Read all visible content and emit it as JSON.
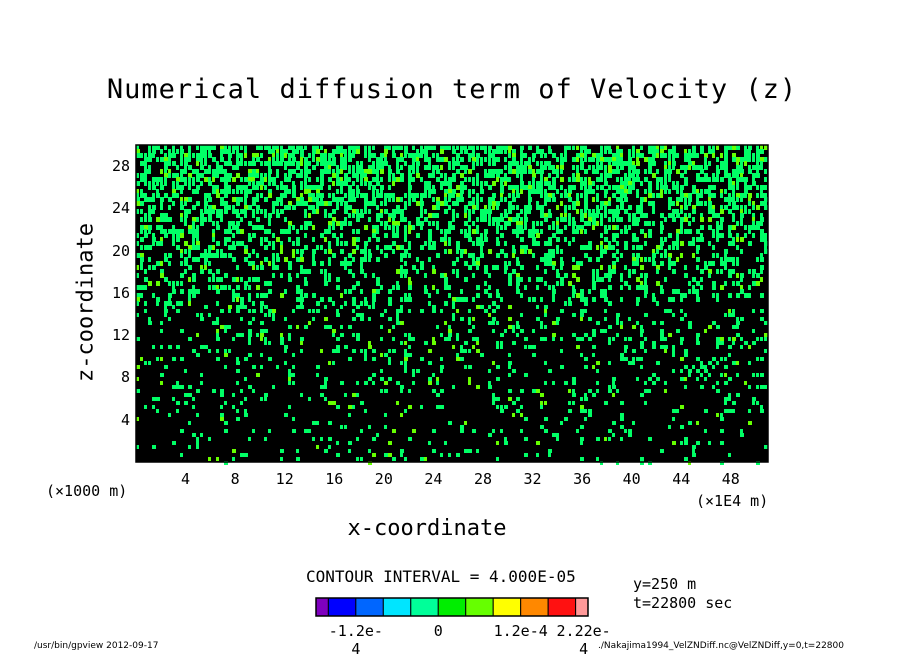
{
  "chart_data": {
    "type": "heatmap",
    "title": "Numerical diffusion term of Velocity (z)",
    "xlabel": "x-coordinate",
    "ylabel": "z-coordinate",
    "x_unit_left": "(×1000 m)",
    "x_unit_right": "(×1E4 m)",
    "xlim": [
      0,
      51
    ],
    "ylim": [
      0,
      30
    ],
    "x_ticks": [
      "4",
      "8",
      "12",
      "16",
      "20",
      "24",
      "28",
      "32",
      "36",
      "40",
      "44",
      "48"
    ],
    "x_tick_values": [
      4,
      8,
      12,
      16,
      20,
      24,
      28,
      32,
      36,
      40,
      44,
      48
    ],
    "y_ticks": [
      "4",
      "8",
      "12",
      "16",
      "20",
      "24",
      "28"
    ],
    "y_tick_values": [
      4,
      8,
      12,
      16,
      20,
      24,
      28
    ],
    "contour_interval": "CONTOUR INTERVAL = 4.000E-05",
    "colorbar": {
      "levels": [
        -0.00016,
        -0.00012,
        -8e-05,
        -4e-05,
        0,
        4e-05,
        8e-05,
        0.00012,
        0.00016,
        0.0002,
        0.00022
      ],
      "colors": [
        "#7f00bf",
        "#0000ff",
        "#0066ff",
        "#00e5ff",
        "#00ff99",
        "#00ee00",
        "#66ff00",
        "#ffff00",
        "#ff8800",
        "#ff1111",
        "#ff9999"
      ],
      "tick_labels": [
        "-1.2e-4",
        "0",
        "1.2e-4",
        "2.22e-4"
      ],
      "tick_values": [
        -0.00012,
        0,
        0.00012,
        0.000222
      ]
    },
    "field_colors": {
      "background": "#000000",
      "positive": "#00ff66",
      "strong": "#66ff00"
    }
  },
  "annotations": {
    "y_position": "y=250 m",
    "time": "t=22800 sec"
  },
  "footer": {
    "left": "/usr/bin/gpview  2012-09-17",
    "right": "./Nakajima1994_VelZNDiff.nc@VelZNDiff,y=0,t=22800"
  }
}
